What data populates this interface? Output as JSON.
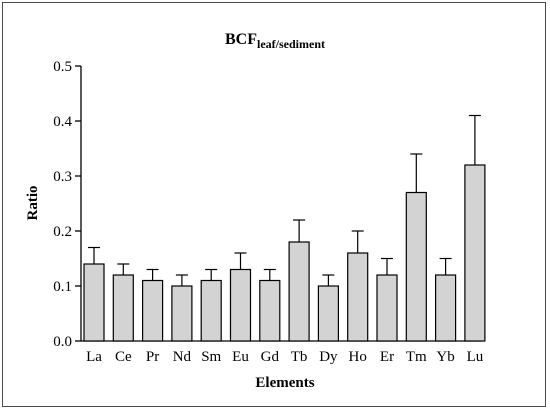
{
  "chart_data": {
    "type": "bar",
    "title": "BCF",
    "title_subscript": "leaf/sediment",
    "xlabel": "Elements",
    "ylabel": "Ratio",
    "ylim": [
      0,
      0.5
    ],
    "yticks": [
      "0.0",
      "0.1",
      "0.2",
      "0.3",
      "0.4",
      "0.5"
    ],
    "categories": [
      "La",
      "Ce",
      "Pr",
      "Nd",
      "Sm",
      "Eu",
      "Gd",
      "Tb",
      "Dy",
      "Ho",
      "Er",
      "Tm",
      "Yb",
      "Lu"
    ],
    "values": [
      0.14,
      0.12,
      0.11,
      0.1,
      0.11,
      0.13,
      0.11,
      0.18,
      0.1,
      0.16,
      0.12,
      0.27,
      0.12,
      0.32
    ],
    "error_upper": [
      0.03,
      0.02,
      0.02,
      0.02,
      0.02,
      0.03,
      0.02,
      0.04,
      0.02,
      0.04,
      0.03,
      0.07,
      0.03,
      0.09
    ],
    "grid": false,
    "colors": {
      "bar_fill": "#d3d3d3",
      "bar_stroke": "#000000",
      "axis": "#000000"
    }
  }
}
